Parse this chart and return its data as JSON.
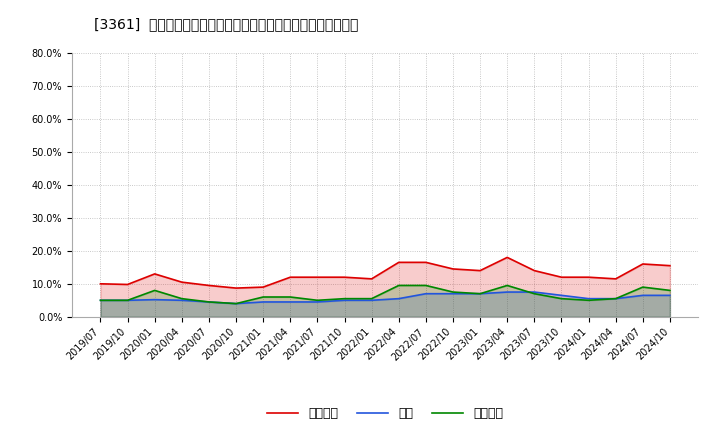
{
  "title": "[3361]  売上債権、在庫、買入債務の総資産に対する比率の推移",
  "x_labels": [
    "2019/07",
    "2019/10",
    "2020/01",
    "2020/04",
    "2020/07",
    "2020/10",
    "2021/01",
    "2021/04",
    "2021/07",
    "2021/10",
    "2022/01",
    "2022/04",
    "2022/07",
    "2022/10",
    "2023/01",
    "2023/04",
    "2023/07",
    "2023/10",
    "2024/01",
    "2024/04",
    "2024/07",
    "2024/10"
  ],
  "urikake": [
    10.0,
    9.8,
    13.0,
    10.5,
    9.5,
    8.7,
    9.0,
    12.0,
    12.0,
    12.0,
    11.5,
    16.5,
    16.5,
    14.5,
    14.0,
    18.0,
    14.0,
    12.0,
    12.0,
    11.5,
    16.0,
    15.5
  ],
  "zaiko": [
    5.0,
    5.0,
    5.2,
    5.0,
    4.5,
    4.0,
    4.5,
    4.5,
    4.5,
    5.0,
    5.0,
    5.5,
    7.0,
    7.0,
    7.0,
    7.5,
    7.5,
    6.5,
    5.5,
    5.5,
    6.5,
    6.5
  ],
  "kaiire": [
    5.0,
    5.0,
    8.0,
    5.5,
    4.5,
    4.0,
    6.0,
    6.0,
    5.0,
    5.5,
    5.5,
    9.5,
    9.5,
    7.5,
    7.0,
    9.5,
    7.0,
    5.5,
    5.0,
    5.5,
    9.0,
    8.0
  ],
  "color_urikake": "#dd0000",
  "color_zaiko": "#2255dd",
  "color_kaiire": "#008800",
  "label_urikake": "売上債権",
  "label_zaiko": "在庫",
  "label_kaiire": "買入債務",
  "ylim": [
    0,
    80
  ],
  "yticks": [
    0,
    10,
    20,
    30,
    40,
    50,
    60,
    70,
    80
  ],
  "background_color": "#ffffff",
  "grid_color": "#999999",
  "title_fontsize": 10,
  "legend_fontsize": 9,
  "tick_fontsize": 7,
  "linewidth": 1.2
}
